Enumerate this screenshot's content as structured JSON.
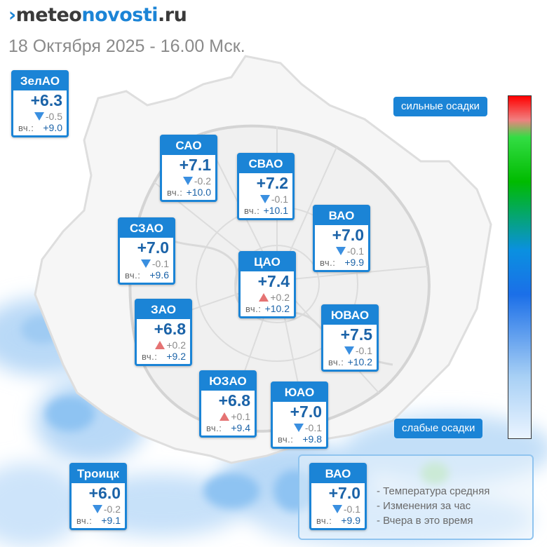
{
  "brand": {
    "mark": "›",
    "part1": "meteo",
    "part2": "novosti",
    "part3": ".ru"
  },
  "date_title": "18 Октября 2025 - 16.00 Мск.",
  "labels": {
    "yesterday": "вч.:"
  },
  "districts": [
    {
      "name": "ЗелАО",
      "temp": "+6.3",
      "change": "-0.5",
      "trend": "down",
      "yesterday": "+9.0"
    },
    {
      "name": "САО",
      "temp": "+7.1",
      "change": "-0.2",
      "trend": "down",
      "yesterday": "+10.0"
    },
    {
      "name": "СВАО",
      "temp": "+7.2",
      "change": "-0.1",
      "trend": "down",
      "yesterday": "+10.1"
    },
    {
      "name": "ВАО",
      "temp": "+7.0",
      "change": "-0.1",
      "trend": "down",
      "yesterday": "+9.9"
    },
    {
      "name": "СЗАО",
      "temp": "+7.0",
      "change": "-0.1",
      "trend": "down",
      "yesterday": "+9.6"
    },
    {
      "name": "ЦАО",
      "temp": "+7.4",
      "change": "+0.2",
      "trend": "up",
      "yesterday": "+10.2"
    },
    {
      "name": "ЗАО",
      "temp": "+6.8",
      "change": "+0.2",
      "trend": "up",
      "yesterday": "+9.2"
    },
    {
      "name": "ЮВАО",
      "temp": "+7.5",
      "change": "-0.1",
      "trend": "down",
      "yesterday": "+10.2"
    },
    {
      "name": "ЮЗАО",
      "temp": "+6.8",
      "change": "+0.1",
      "trend": "up",
      "yesterday": "+9.4"
    },
    {
      "name": "ЮАО",
      "temp": "+7.0",
      "change": "-0.1",
      "trend": "down",
      "yesterday": "+9.8"
    },
    {
      "name": "Троицк",
      "temp": "+6.0",
      "change": "-0.2",
      "trend": "down",
      "yesterday": "+9.1"
    }
  ],
  "scale": {
    "top_label": "сильные осадки",
    "bottom_label": "слабые осадки"
  },
  "legend": {
    "example": {
      "name": "ВАО",
      "temp": "+7.0",
      "change": "-0.1",
      "trend": "down",
      "yesterday": "+9.9"
    },
    "lines": [
      "- Температура средняя",
      "- Изменения за час",
      "- Вчера в это время"
    ]
  },
  "colors": {
    "accent": "#1b84d6",
    "temp_text": "#1b63a8",
    "trend_down": "#3a8fe0",
    "trend_up": "#e57373"
  }
}
